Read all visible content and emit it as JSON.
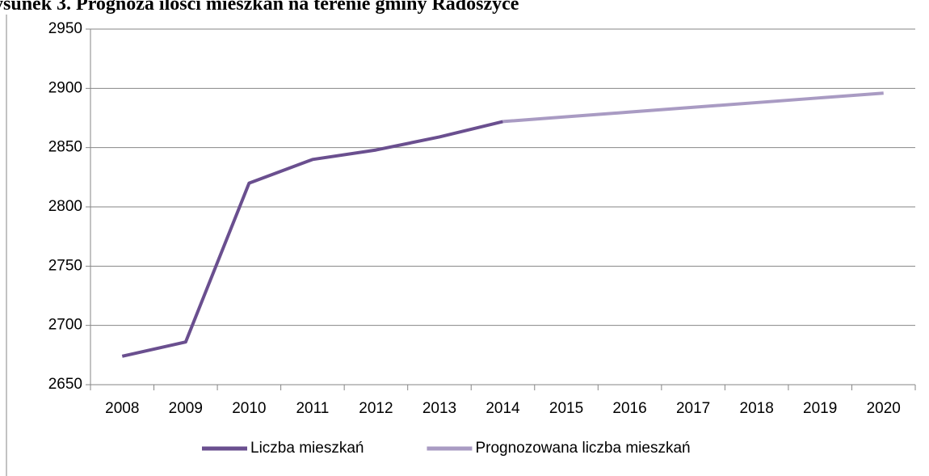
{
  "chart_data": {
    "type": "line",
    "title": "ysunek 3. Prognoza ilości mieszkań na terenie gminy Radoszyce",
    "categories": [
      "2008",
      "2009",
      "2010",
      "2011",
      "2012",
      "2013",
      "2014",
      "2015",
      "2016",
      "2017",
      "2018",
      "2019",
      "2020"
    ],
    "series": [
      {
        "name": "Liczba mieszkań",
        "color": "#6a4f8f",
        "values": [
          2674,
          2686,
          2820,
          2840,
          2848,
          2859,
          2872,
          null,
          null,
          null,
          null,
          null,
          null
        ]
      },
      {
        "name": "Prognozowana liczba mieszkań",
        "color": "#a99bc3",
        "values": [
          null,
          null,
          null,
          null,
          null,
          null,
          2872,
          2876,
          2880,
          2884,
          2888,
          2892,
          2896
        ]
      }
    ],
    "ylim": [
      2650,
      2950
    ],
    "yticks": [
      2650,
      2700,
      2750,
      2800,
      2850,
      2900,
      2950
    ],
    "grid": true,
    "legend": "bottom"
  }
}
